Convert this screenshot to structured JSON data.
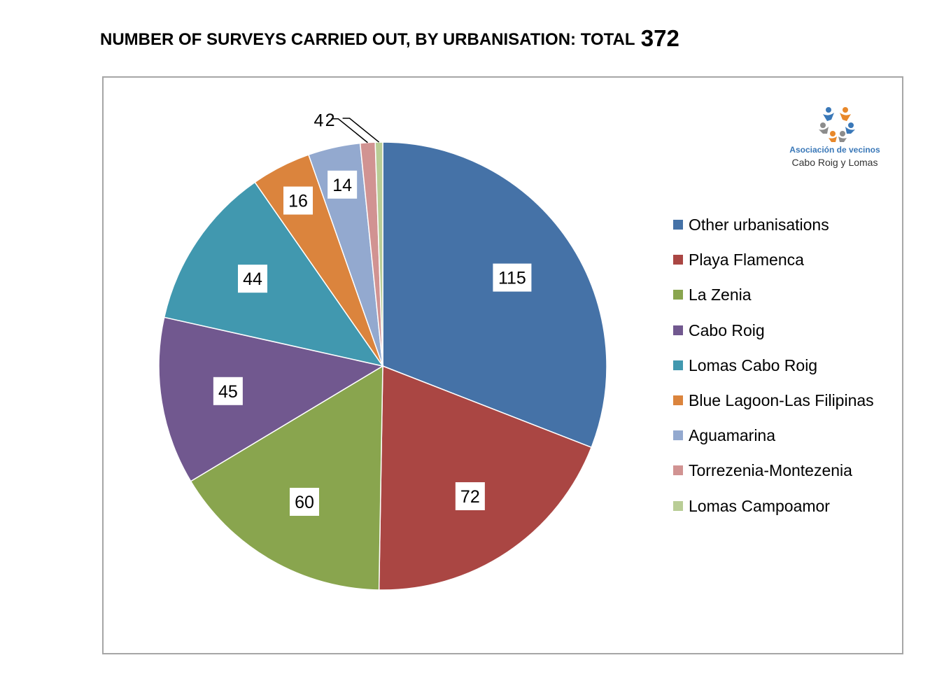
{
  "title": {
    "text": "NUMBER OF SURVEYS CARRIED OUT, BY URBANISATION: TOTAL",
    "total": "372"
  },
  "logo": {
    "line1": "Asociación de vecinos",
    "line2": "Cabo Roig y Lomas"
  },
  "chart_data": {
    "type": "pie",
    "title": "NUMBER OF SURVEYS CARRIED OUT, BY URBANISATION: TOTAL 372",
    "start_angle": "12 o'clock",
    "direction": "clockwise",
    "legend_position": "right",
    "slices": [
      {
        "label": "Other urbanisations",
        "value": 115,
        "color": "#4572a7"
      },
      {
        "label": "Playa Flamenca",
        "value": 72,
        "color": "#aa4643"
      },
      {
        "label": "La Zenia",
        "value": 60,
        "color": "#89a54e"
      },
      {
        "label": "Cabo Roig",
        "value": 45,
        "color": "#71588f"
      },
      {
        "label": "Lomas Cabo Roig",
        "value": 44,
        "color": "#4198af"
      },
      {
        "label": "Blue Lagoon-Las Filipinas",
        "value": 16,
        "color": "#db843d"
      },
      {
        "label": "Aguamarina",
        "value": 14,
        "color": "#93a9cf"
      },
      {
        "label": "Torrezenia-Montezenia",
        "value": 4,
        "color": "#d19392"
      },
      {
        "label": "Lomas Campoamor",
        "value": 2,
        "color": "#b9cd96"
      }
    ]
  }
}
